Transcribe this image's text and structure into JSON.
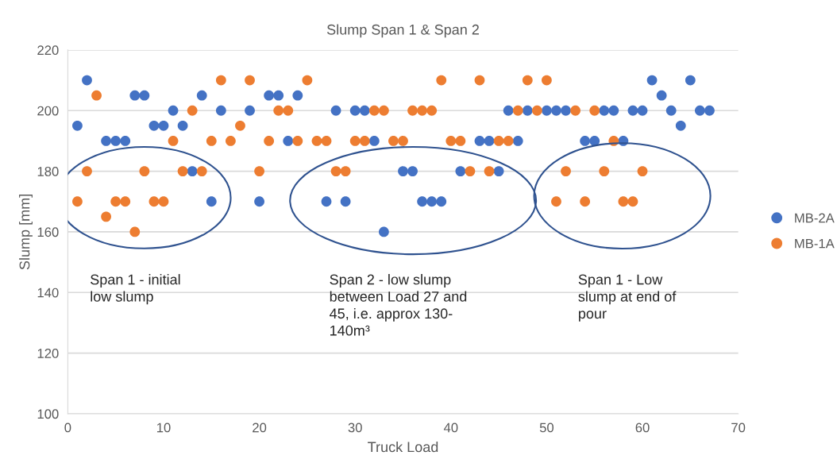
{
  "chart_data": {
    "type": "scatter",
    "title": "Slump Span 1 & Span 2",
    "xlabel": "Truck Load",
    "ylabel": "Slump [mm]",
    "xlim": [
      0,
      70
    ],
    "xticks": [
      0,
      10,
      20,
      30,
      40,
      50,
      60,
      70
    ],
    "ylim": [
      100,
      220
    ],
    "yticks": [
      100,
      120,
      140,
      160,
      180,
      200,
      220
    ],
    "grid": "y",
    "legend": "right",
    "marker": "circle",
    "series": [
      {
        "name": "MB-2A",
        "color": "#4472c4",
        "x": [
          1,
          2,
          4,
          5,
          6,
          7,
          8,
          9,
          10,
          11,
          12,
          13,
          14,
          15,
          16,
          19,
          20,
          21,
          22,
          23,
          24,
          27,
          28,
          29,
          30,
          31,
          32,
          33,
          35,
          36,
          37,
          38,
          39,
          41,
          43,
          44,
          45,
          46,
          47,
          48,
          50,
          51,
          52,
          54,
          55,
          56,
          57,
          58,
          59,
          60,
          61,
          62,
          63,
          64,
          65,
          66,
          67
        ],
        "values": [
          195,
          210,
          190,
          190,
          190,
          205,
          205,
          195,
          195,
          200,
          195,
          180,
          205,
          170,
          200,
          200,
          170,
          205,
          205,
          190,
          205,
          170,
          200,
          170,
          200,
          200,
          190,
          160,
          180,
          180,
          170,
          170,
          170,
          180,
          190,
          190,
          180,
          200,
          190,
          200,
          200,
          200,
          200,
          190,
          190,
          200,
          200,
          190,
          200,
          200,
          210,
          205,
          200,
          195,
          210,
          200,
          200
        ]
      },
      {
        "name": "MB-1A",
        "color": "#ed7d31",
        "x": [
          1,
          2,
          3,
          4,
          5,
          6,
          7,
          8,
          9,
          10,
          11,
          12,
          13,
          14,
          15,
          16,
          17,
          18,
          19,
          20,
          21,
          22,
          23,
          24,
          25,
          26,
          27,
          28,
          29,
          30,
          31,
          32,
          33,
          34,
          35,
          36,
          37,
          38,
          39,
          40,
          41,
          42,
          43,
          44,
          45,
          46,
          47,
          48,
          49,
          50,
          51,
          52,
          53,
          54,
          55,
          56,
          57,
          58,
          59,
          60
        ],
        "values": [
          170,
          180,
          205,
          165,
          170,
          170,
          160,
          180,
          170,
          170,
          190,
          180,
          200,
          180,
          190,
          210,
          190,
          195,
          210,
          180,
          190,
          200,
          200,
          190,
          210,
          190,
          190,
          180,
          180,
          190,
          190,
          200,
          200,
          190,
          190,
          200,
          200,
          200,
          210,
          190,
          190,
          180,
          210,
          180,
          190,
          190,
          200,
          210,
          200,
          210,
          170,
          180,
          200,
          170,
          200,
          180,
          190,
          170,
          170,
          180
        ]
      }
    ],
    "annotations": [
      "Span 1 - initial\nlow slump",
      "Span 2 - low slump\nbetween Load 27 and\n45, i.e. approx 130-\n140m³",
      "Span 1 - Low\nslump at end of\npour"
    ]
  }
}
